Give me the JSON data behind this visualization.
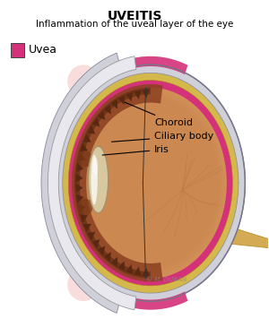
{
  "title": "UVEITIS",
  "subtitle": "Inflammation of the uveal layer of the eye",
  "legend_label": "Uvea",
  "legend_color": "#D4317A",
  "bg_color": "#FFFFFF",
  "eye_fill_color": "#D4905A",
  "eye_fill_color2": "#C47840",
  "sclera_color": "#C8C8D0",
  "sclera_outline_color": "#888899",
  "uvea_color": "#D4317A",
  "choroid_dark_color": "#8B4020",
  "yellow_ring_color": "#D4B84A",
  "yellow_ring_color2": "#C8A030",
  "optic_nerve_color": "#D4AA55",
  "lens_outer_color": "#E8E0C8",
  "lens_inner_color": "#C8A870",
  "vessel_color": "#C07840",
  "iris_brown": "#8B5030",
  "copyright_color": "#888888",
  "label_fontsize": 8,
  "title_fontsize": 10,
  "subtitle_fontsize": 7.5
}
